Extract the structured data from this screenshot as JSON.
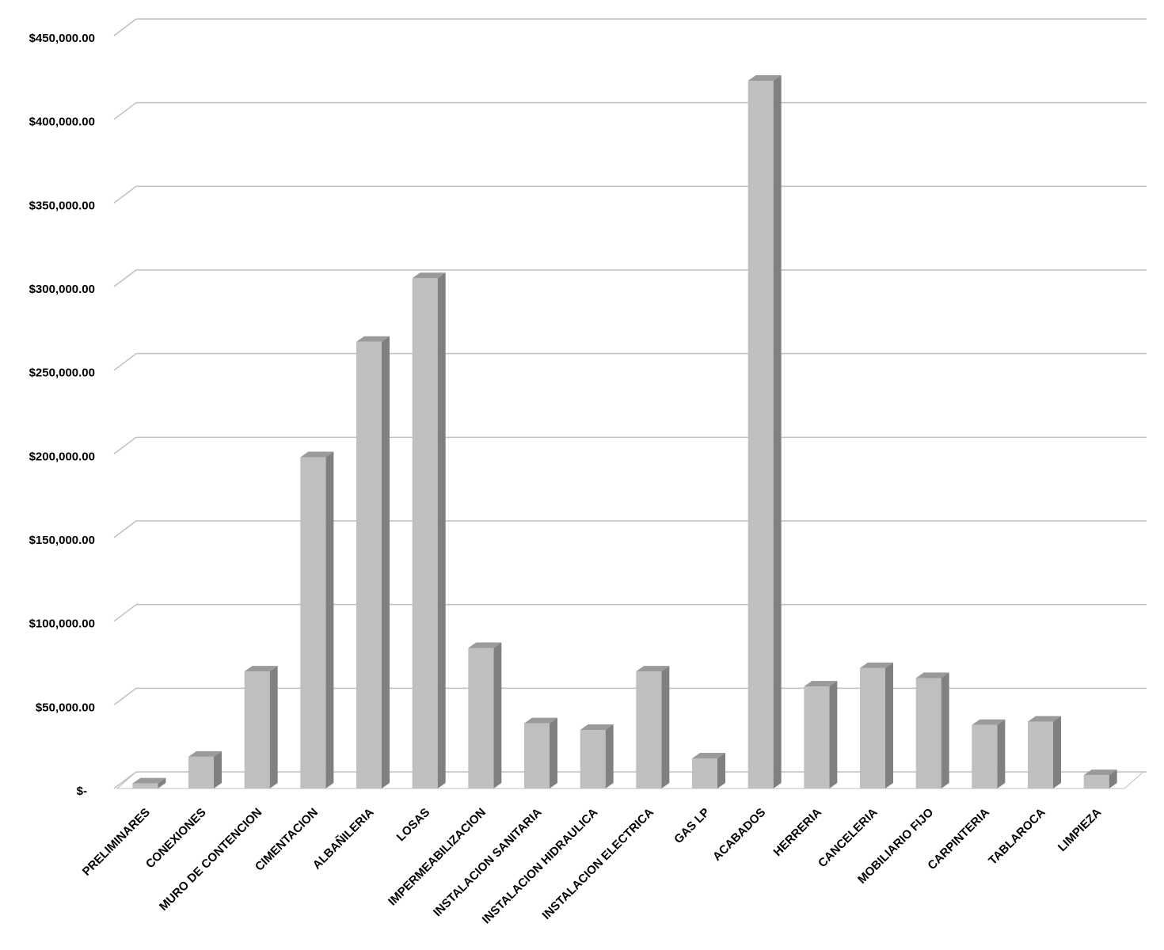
{
  "chart_data": {
    "type": "bar3d",
    "categories": [
      "PRELIMINARES",
      "CONEXIONES",
      "MURO DE CONTENCION",
      "CIMENTACION",
      "ALBAÑILERIA",
      "LOSAS",
      "IMPERMEABILIZACION",
      "INSTALACION SANITARIA",
      "INSTALACION HIDRAULICA",
      "INSTALACION ELECTRICA",
      "GAS LP",
      "ACABADOS",
      "HERRERIA",
      "CANCELERIA",
      "MOBILIARIO FIJO",
      "CARPINTERIA",
      "TABLAROCA",
      "LIMPIEZA"
    ],
    "values": [
      3000,
      19000,
      70000,
      198000,
      267000,
      305000,
      84000,
      39000,
      35000,
      70000,
      18000,
      423000,
      61000,
      72000,
      66000,
      38000,
      40000,
      8000
    ],
    "color": "#bfbfbf",
    "ylim": [
      0,
      450000
    ],
    "yticks": [
      {
        "value": 0,
        "label": "$-"
      },
      {
        "value": 50000,
        "label": "$50,000.00"
      },
      {
        "value": 100000,
        "label": "$100,000.00"
      },
      {
        "value": 150000,
        "label": "$150,000.00"
      },
      {
        "value": 200000,
        "label": "$200,000.00"
      },
      {
        "value": 250000,
        "label": "$250,000.00"
      },
      {
        "value": 300000,
        "label": "$300,000.00"
      },
      {
        "value": 350000,
        "label": "$350,000.00"
      },
      {
        "value": 400000,
        "label": "$400,000.00"
      },
      {
        "value": 450000,
        "label": "$450,000.00"
      }
    ],
    "grid": true
  }
}
